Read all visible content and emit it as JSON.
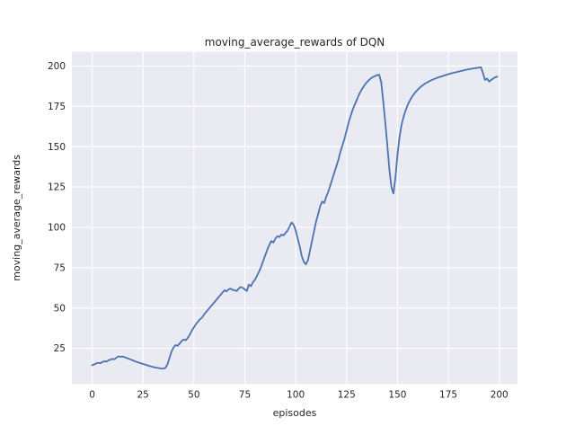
{
  "chart_data": {
    "type": "line",
    "title": "moving_average_rewards of DQN",
    "xlabel": "episodes",
    "ylabel": "moving_average_rewards",
    "xlim": [
      -9.95,
      208.95
    ],
    "ylim": [
      2.9,
      208.8
    ],
    "xticks": [
      0,
      25,
      50,
      75,
      100,
      125,
      150,
      175,
      200
    ],
    "yticks": [
      25,
      50,
      75,
      100,
      125,
      150,
      175,
      200
    ],
    "grid": true,
    "legend": "none",
    "style": "seaborn-darkgrid",
    "colors": {
      "figure_background": "#ffffff",
      "axes_background": "#EAEAF2",
      "gridline": "#FFFFFF",
      "line": "#4C72B0",
      "text": "#262626"
    },
    "series": [
      {
        "name": "moving_average_rewards",
        "x_start": 0,
        "x_step": 1,
        "y": [
          14.5,
          15.0,
          15.6,
          16.0,
          15.7,
          16.4,
          17.0,
          16.7,
          17.5,
          18.0,
          18.4,
          18.2,
          19.3,
          20.0,
          19.7,
          19.9,
          19.5,
          19.0,
          18.5,
          18.0,
          17.5,
          17.0,
          16.5,
          16.1,
          15.7,
          15.3,
          14.9,
          14.5,
          14.1,
          13.7,
          13.4,
          13.1,
          12.9,
          12.7,
          12.5,
          12.4,
          12.9,
          15.0,
          19.0,
          23.0,
          25.5,
          27.0,
          26.5,
          28.0,
          29.5,
          30.5,
          30.0,
          31.5,
          33.5,
          36.0,
          38.0,
          40.0,
          41.5,
          43.0,
          44.0,
          46.0,
          47.5,
          49.0,
          50.5,
          52.0,
          53.5,
          55.0,
          56.5,
          58.0,
          59.5,
          61.0,
          60.3,
          61.5,
          62.0,
          61.2,
          61.0,
          60.5,
          62.0,
          63.0,
          62.5,
          61.5,
          60.5,
          64.5,
          63.5,
          66.0,
          67.5,
          70.0,
          72.5,
          75.5,
          79.0,
          82.5,
          86.0,
          89.0,
          91.5,
          90.5,
          93.0,
          94.5,
          94.0,
          95.5,
          95.0,
          96.5,
          98.0,
          100.5,
          103.0,
          101.5,
          98.0,
          93.0,
          88.0,
          82.0,
          78.5,
          77.0,
          79.5,
          85.5,
          91.5,
          97.5,
          103.5,
          108.0,
          113.0,
          116.0,
          115.0,
          119.0,
          122.0,
          126.0,
          130.0,
          134.0,
          138.0,
          142.0,
          147.0,
          151.0,
          155.0,
          160.0,
          165.0,
          169.0,
          173.0,
          176.0,
          179.0,
          182.0,
          184.5,
          186.5,
          188.5,
          190.0,
          191.3,
          192.4,
          193.2,
          193.8,
          194.3,
          194.6,
          190.0,
          178.0,
          165.0,
          151.0,
          136.0,
          125.0,
          121.0,
          131.0,
          145.0,
          156.0,
          163.5,
          168.5,
          172.5,
          175.8,
          178.4,
          180.6,
          182.4,
          184.0,
          185.4,
          186.6,
          187.7,
          188.6,
          189.4,
          190.1,
          190.8,
          191.4,
          191.9,
          192.4,
          192.9,
          193.3,
          193.7,
          194.1,
          194.5,
          194.9,
          195.3,
          195.6,
          195.9,
          196.2,
          196.5,
          196.8,
          197.1,
          197.4,
          197.7,
          198.0,
          198.2,
          198.4,
          198.6,
          198.8,
          199.0,
          199.2,
          195.5,
          191.3,
          192.2,
          190.3,
          191.3,
          192.2,
          193.0,
          193.4
        ]
      }
    ]
  }
}
